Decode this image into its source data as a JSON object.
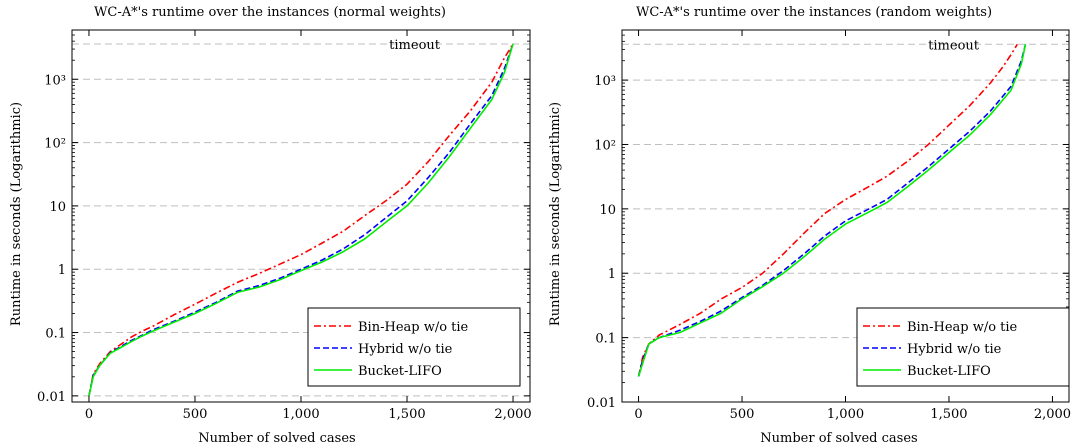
{
  "chart_data": [
    {
      "type": "line",
      "title": "WC-A*'s runtime over the instances (normal weights)",
      "xlabel": "Number of solved cases",
      "ylabel": "Runtime in seconds (Logarithmic)",
      "xlim": [
        -80,
        2080
      ],
      "ylim": [
        0.008,
        6000
      ],
      "yscale": "log",
      "grid": "horizontal dashed",
      "legend_position": "bottom-right",
      "xticks": [
        0,
        500,
        1000,
        1500,
        2000
      ],
      "xtick_labels": [
        "0",
        "500",
        "1,000",
        "1,500",
        "2,000"
      ],
      "yticks": [
        0.01,
        0.1,
        1,
        10,
        100,
        1000
      ],
      "ytick_labels": [
        "0.01",
        "0.1",
        "1",
        "10",
        "10²",
        "10³"
      ],
      "timeout": {
        "label": "timeout",
        "value": 3600
      },
      "series": [
        {
          "name": "Bin-Heap w/o tie",
          "color": "#ff0000",
          "style": "dash-dot",
          "x": [
            0,
            20,
            50,
            100,
            150,
            200,
            250,
            300,
            400,
            500,
            600,
            700,
            800,
            900,
            1000,
            1100,
            1200,
            1300,
            1400,
            1500,
            1600,
            1700,
            1800,
            1900,
            1960,
            2000
          ],
          "y": [
            0.01,
            0.022,
            0.032,
            0.05,
            0.065,
            0.085,
            0.105,
            0.125,
            0.19,
            0.28,
            0.42,
            0.62,
            0.85,
            1.2,
            1.7,
            2.6,
            4.0,
            7.0,
            12,
            22,
            50,
            130,
            320,
            900,
            2200,
            3600
          ]
        },
        {
          "name": "Hybrid w/o tie",
          "color": "#0000ff",
          "style": "dashed",
          "x": [
            0,
            20,
            50,
            100,
            150,
            200,
            250,
            300,
            400,
            500,
            600,
            700,
            800,
            900,
            1000,
            1100,
            1200,
            1300,
            1400,
            1500,
            1600,
            1700,
            1800,
            1900,
            1960,
            2000
          ],
          "y": [
            0.01,
            0.021,
            0.03,
            0.048,
            0.06,
            0.075,
            0.09,
            0.11,
            0.15,
            0.21,
            0.3,
            0.45,
            0.55,
            0.72,
            1.0,
            1.4,
            2.1,
            3.5,
            6.5,
            12,
            28,
            70,
            200,
            550,
            1500,
            3600
          ]
        },
        {
          "name": "Bucket-LIFO",
          "color": "#00ee00",
          "style": "solid",
          "x": [
            0,
            20,
            50,
            100,
            150,
            200,
            250,
            300,
            400,
            500,
            600,
            700,
            800,
            900,
            1000,
            1100,
            1200,
            1300,
            1400,
            1500,
            1600,
            1700,
            1800,
            1900,
            1960,
            2000
          ],
          "y": [
            0.01,
            0.02,
            0.03,
            0.047,
            0.058,
            0.072,
            0.088,
            0.105,
            0.145,
            0.2,
            0.29,
            0.43,
            0.52,
            0.68,
            0.95,
            1.3,
            1.9,
            3.0,
            5.5,
            10,
            23,
            60,
            170,
            480,
            1300,
            3600
          ]
        }
      ]
    },
    {
      "type": "line",
      "title": "WC-A*'s runtime over the instances (random weights)",
      "xlabel": "Number of solved cases",
      "ylabel": "Runtime in seconds (Logarithmic)",
      "xlim": [
        -80,
        2080
      ],
      "ylim": [
        0.01,
        6000
      ],
      "yscale": "log",
      "grid": "horizontal dashed",
      "legend_position": "bottom-right",
      "xticks": [
        0,
        500,
        1000,
        1500,
        2000
      ],
      "xtick_labels": [
        "0",
        "500",
        "1,000",
        "1,500",
        "2,000"
      ],
      "yticks": [
        0.01,
        0.1,
        1,
        10,
        100,
        1000
      ],
      "ytick_labels": [
        "0.01",
        "0.1",
        "1",
        "10",
        "10²",
        "10³"
      ],
      "timeout": {
        "label": "timeout",
        "value": 3600
      },
      "series": [
        {
          "name": "Bin-Heap w/o tie",
          "color": "#ff0000",
          "style": "dash-dot",
          "x": [
            0,
            20,
            50,
            100,
            200,
            300,
            400,
            500,
            600,
            700,
            800,
            900,
            1000,
            1100,
            1200,
            1300,
            1400,
            1500,
            1600,
            1700,
            1760,
            1800,
            1830
          ],
          "y": [
            0.025,
            0.05,
            0.08,
            0.11,
            0.16,
            0.24,
            0.4,
            0.6,
            1.0,
            2.0,
            4.2,
            8.5,
            14,
            21,
            32,
            55,
            100,
            200,
            400,
            900,
            1600,
            2500,
            3600
          ]
        },
        {
          "name": "Hybrid w/o tie",
          "color": "#0000ff",
          "style": "dashed",
          "x": [
            0,
            20,
            50,
            100,
            200,
            300,
            400,
            500,
            600,
            700,
            800,
            900,
            1000,
            1100,
            1200,
            1300,
            1400,
            1500,
            1600,
            1700,
            1800,
            1850,
            1870
          ],
          "y": [
            0.025,
            0.045,
            0.08,
            0.1,
            0.13,
            0.18,
            0.26,
            0.42,
            0.65,
            1.1,
            2.0,
            3.8,
            6.5,
            9.5,
            14,
            25,
            45,
            85,
            160,
            330,
            800,
            2000,
            3600
          ]
        },
        {
          "name": "Bucket-LIFO",
          "color": "#00ee00",
          "style": "solid",
          "x": [
            0,
            20,
            50,
            100,
            200,
            300,
            400,
            500,
            600,
            700,
            800,
            900,
            1000,
            1100,
            1200,
            1300,
            1400,
            1500,
            1600,
            1700,
            1800,
            1850,
            1870
          ],
          "y": [
            0.025,
            0.04,
            0.08,
            0.1,
            0.12,
            0.17,
            0.24,
            0.4,
            0.62,
            1.0,
            1.8,
            3.4,
            5.8,
            8.5,
            12.5,
            22,
            40,
            75,
            140,
            290,
            700,
            1800,
            3600
          ]
        }
      ]
    }
  ]
}
